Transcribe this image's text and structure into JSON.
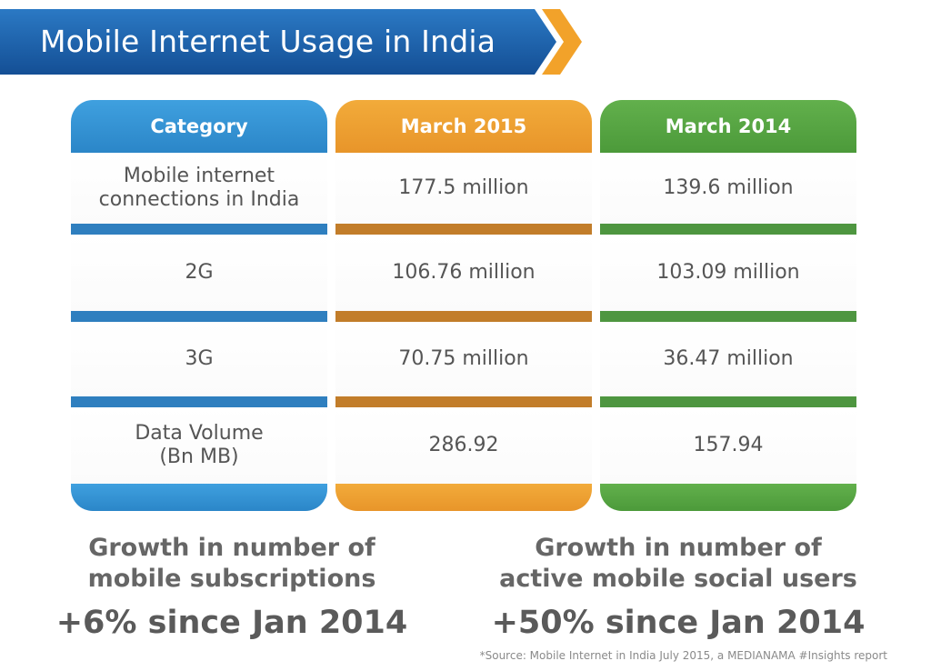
{
  "title": "Mobile Internet Usage in India",
  "colors": {
    "banner": "#1a5ea8",
    "arrow": "#f2a22a",
    "category": "#2b86c8",
    "march2015": "#e8952a",
    "march2014": "#4c9a3a"
  },
  "chart_data": {
    "type": "table",
    "columns": [
      "Category",
      "March 2015",
      "March 2014"
    ],
    "rows": [
      [
        "Mobile internet connections in India",
        "177.5 million",
        "139.6 million"
      ],
      [
        "2G",
        "106.76 million",
        "103.09 million"
      ],
      [
        "3G",
        "70.75 million",
        "36.47 million"
      ],
      [
        "Data Volume (Bn MB)",
        "286.92",
        "157.94"
      ]
    ]
  },
  "table": {
    "headers": [
      "Category",
      "March 2015",
      "March 2014"
    ],
    "rows": [
      {
        "category": [
          "Mobile internet",
          "connections in India"
        ],
        "march2015": "177.5 million",
        "march2014": "139.6 million"
      },
      {
        "category": [
          "2G"
        ],
        "march2015": "106.76 million",
        "march2014": "103.09 million"
      },
      {
        "category": [
          "3G"
        ],
        "march2015": "70.75 million",
        "march2014": "36.47 million"
      },
      {
        "category": [
          "Data Volume",
          "(Bn MB)"
        ],
        "march2015": "286.92",
        "march2014": "157.94"
      }
    ]
  },
  "stats": {
    "left": {
      "line1": "Growth in number of",
      "line2": "mobile subscriptions",
      "value": "+6% since Jan 2014"
    },
    "right": {
      "line1": "Growth in number of",
      "line2": "active mobile social users",
      "value": "+50% since Jan 2014"
    }
  },
  "source": "*Source: Mobile Internet in India July 2015, a MEDIANAMA #Insights report"
}
